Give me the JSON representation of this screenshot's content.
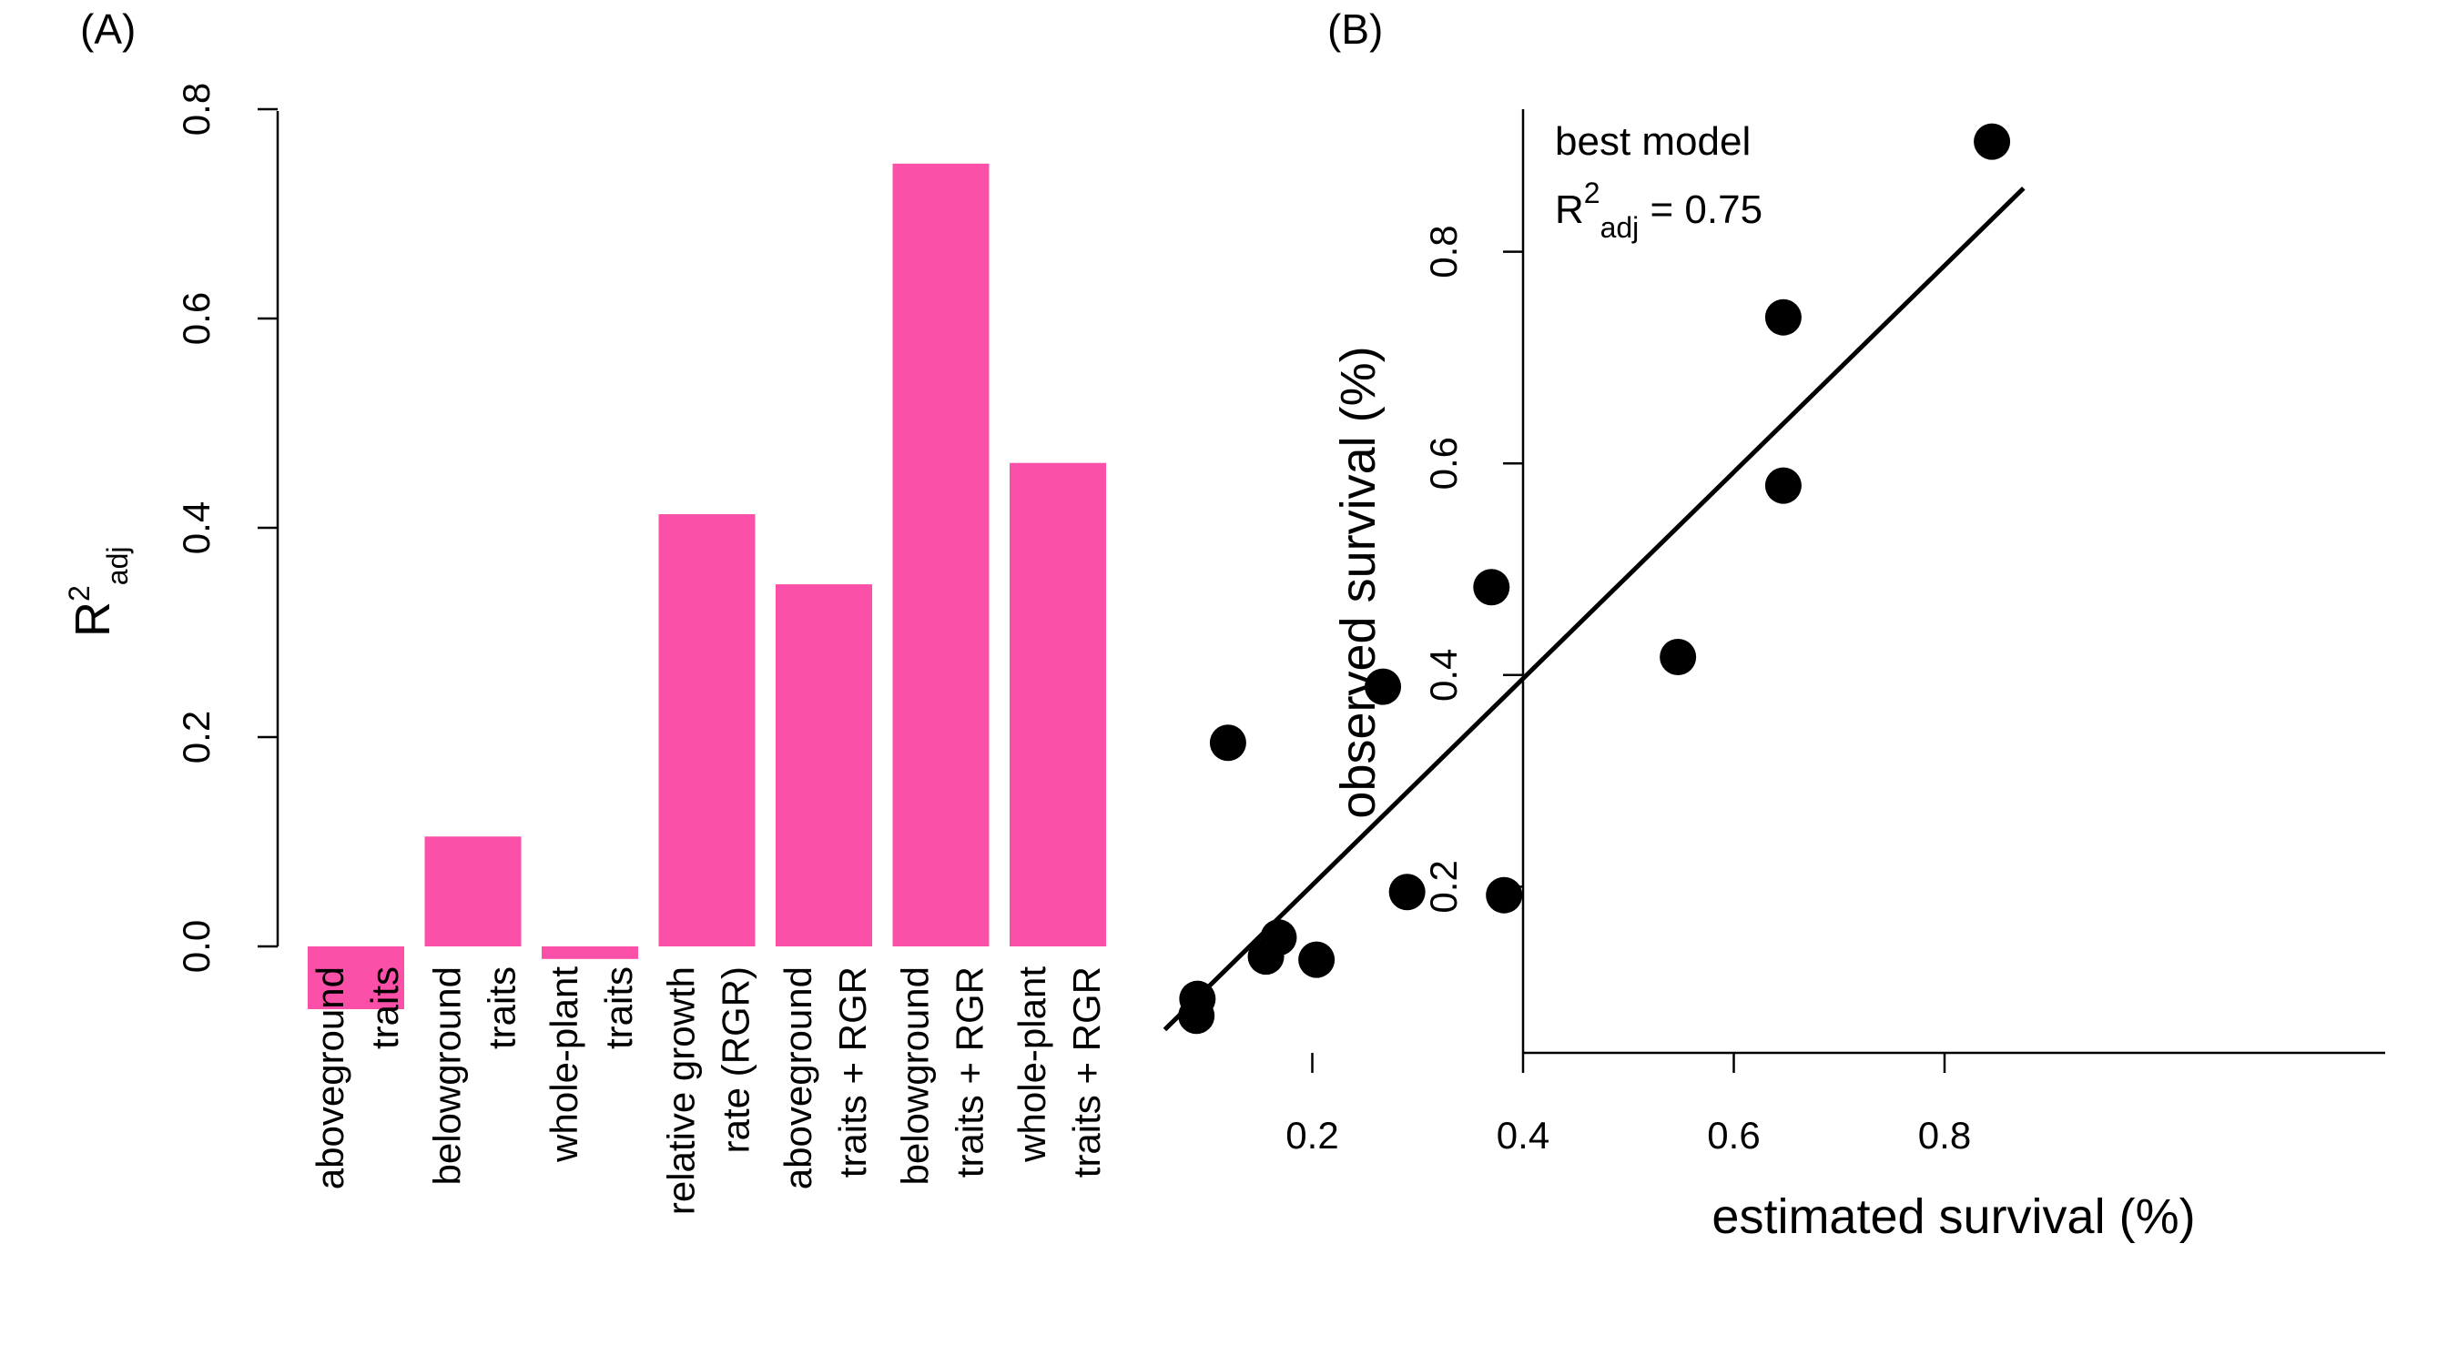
{
  "figure": {
    "panel_a_label": "(A)",
    "panel_b_label": "(B)"
  },
  "chart_data": [
    {
      "type": "bar",
      "panel": "(A)",
      "categories": [
        [
          "aboveground",
          "traits"
        ],
        [
          "belowground",
          "traits"
        ],
        [
          "whole-plant",
          "traits"
        ],
        [
          "relative growth",
          "rate (RGR)"
        ],
        [
          "aboveground",
          "traits + RGR"
        ],
        [
          "belowground",
          "traits + RGR"
        ],
        [
          "whole-plant",
          "traits + RGR"
        ]
      ],
      "values": [
        -0.06,
        0.105,
        -0.012,
        0.413,
        0.346,
        0.748,
        0.462
      ],
      "color": "#FA50A8",
      "ylabel": {
        "main": "R",
        "sup": "2",
        "sub": "adj"
      },
      "ylim": [
        -0.06,
        0.8
      ],
      "yticks": [
        0.0,
        0.2,
        0.4,
        0.6,
        0.8
      ],
      "ytick_labels": [
        "0.0",
        "0.2",
        "0.4",
        "0.6",
        "0.8"
      ],
      "grid": false
    },
    {
      "type": "scatter",
      "panel": "(B)",
      "xlabel": "estimated survival (%)",
      "ylabel": "observed survival (%)",
      "xlim": [
        0.06,
        0.875
      ],
      "ylim": [
        0.055,
        0.93
      ],
      "xticks": [
        0.2,
        0.4,
        0.6,
        0.8
      ],
      "xtick_labels": [
        "0.2",
        "0.4",
        "0.6",
        "0.8"
      ],
      "yticks": [
        0.2,
        0.4,
        0.6,
        0.8
      ],
      "ytick_labels": [
        "0.2",
        "0.4",
        "0.6",
        "0.8"
      ],
      "points": [
        {
          "x": 0.09,
          "y": 0.078
        },
        {
          "x": 0.091,
          "y": 0.094
        },
        {
          "x": 0.12,
          "y": 0.336
        },
        {
          "x": 0.156,
          "y": 0.134
        },
        {
          "x": 0.168,
          "y": 0.152
        },
        {
          "x": 0.204,
          "y": 0.131
        },
        {
          "x": 0.267,
          "y": 0.389
        },
        {
          "x": 0.29,
          "y": 0.195
        },
        {
          "x": 0.37,
          "y": 0.483
        },
        {
          "x": 0.382,
          "y": 0.192
        },
        {
          "x": 0.547,
          "y": 0.417
        },
        {
          "x": 0.647,
          "y": 0.738
        },
        {
          "x": 0.647,
          "y": 0.579
        },
        {
          "x": 0.845,
          "y": 0.904
        }
      ],
      "fit_line": {
        "x": [
          0.06,
          0.875
        ],
        "y": [
          0.065,
          0.86
        ]
      },
      "annotation": {
        "line1": "best model",
        "r_main": "R",
        "r_sup": "2",
        "r_sub": "adj",
        "r_value": " = 0.75"
      },
      "marker_color": "#000000",
      "grid": false
    }
  ]
}
